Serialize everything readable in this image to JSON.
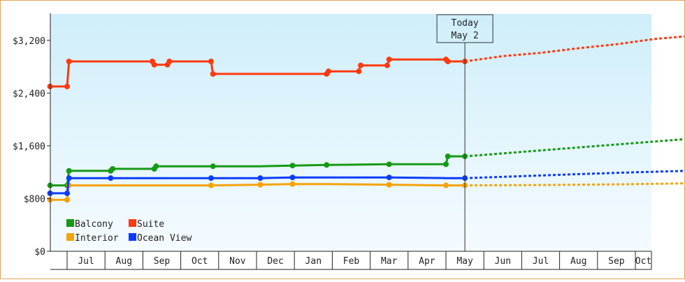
{
  "colors": {
    "balcony": "#169a16",
    "interior": "#f5a30a",
    "suite": "#ff3a10",
    "ocean_view": "#0a3cff",
    "bg_top": "#cfeefa",
    "bg_bottom": "#f5fbff",
    "frame": "#e3a25a"
  },
  "today_marker": {
    "line1": "Today",
    "line2": "May 2"
  },
  "chart_data": {
    "type": "line",
    "title": "",
    "xlabel": "",
    "ylabel": "",
    "ylim": [
      0,
      3600
    ],
    "yticks": [
      0,
      800,
      1600,
      2400,
      3200
    ],
    "ytick_labels": [
      "$0",
      "$800",
      "$1,600",
      "$2,400",
      "$3,200"
    ],
    "x_months": [
      "Jul",
      "Aug",
      "Sep",
      "Oct",
      "Nov",
      "Dec",
      "Jan",
      "Feb",
      "Mar",
      "Apr",
      "May",
      "Jun",
      "Jul",
      "Aug",
      "Sep",
      "Oct"
    ],
    "x_range": [
      0,
      16.3
    ],
    "today_x": 10.5,
    "grid": false,
    "legend_position": "bottom-left",
    "series": [
      {
        "name": "Balcony",
        "color": "#169a16",
        "points": [
          [
            -0.45,
            1000
          ],
          [
            0,
            1000
          ],
          [
            0.05,
            1220
          ],
          [
            1.15,
            1220
          ],
          [
            1.2,
            1250
          ],
          [
            2.3,
            1250
          ],
          [
            2.35,
            1290
          ],
          [
            3.85,
            1290
          ],
          [
            5.1,
            1290
          ],
          [
            5.95,
            1300
          ],
          [
            6.85,
            1310
          ],
          [
            6.9,
            1310
          ],
          [
            8.5,
            1320
          ],
          [
            10.0,
            1320
          ],
          [
            10.05,
            1440
          ],
          [
            10.5,
            1440
          ]
        ],
        "markers": [
          [
            -0.45,
            1000
          ],
          [
            0,
            1000
          ],
          [
            0.05,
            1220
          ],
          [
            1.15,
            1220
          ],
          [
            1.2,
            1250
          ],
          [
            2.3,
            1250
          ],
          [
            2.35,
            1290
          ],
          [
            3.85,
            1290
          ],
          [
            5.95,
            1300
          ],
          [
            6.85,
            1310
          ],
          [
            8.5,
            1320
          ],
          [
            10.0,
            1320
          ],
          [
            10.05,
            1440
          ],
          [
            10.5,
            1440
          ]
        ],
        "projection": [
          [
            10.5,
            1440
          ],
          [
            12.5,
            1530
          ],
          [
            14.5,
            1620
          ],
          [
            16.3,
            1700
          ]
        ]
      },
      {
        "name": "Suite",
        "color": "#ff3a10",
        "points": [
          [
            -0.45,
            2500
          ],
          [
            0,
            2500
          ],
          [
            0.05,
            2880
          ],
          [
            2.25,
            2880
          ],
          [
            2.3,
            2830
          ],
          [
            2.65,
            2830
          ],
          [
            2.7,
            2880
          ],
          [
            3.8,
            2880
          ],
          [
            3.85,
            2690
          ],
          [
            6.85,
            2690
          ],
          [
            6.9,
            2730
          ],
          [
            7.7,
            2730
          ],
          [
            7.75,
            2820
          ],
          [
            8.45,
            2820
          ],
          [
            8.5,
            2910
          ],
          [
            10.0,
            2910
          ],
          [
            10.05,
            2880
          ],
          [
            10.5,
            2880
          ]
        ],
        "markers": [
          [
            -0.45,
            2500
          ],
          [
            0,
            2500
          ],
          [
            0.05,
            2880
          ],
          [
            2.25,
            2880
          ],
          [
            2.3,
            2830
          ],
          [
            2.65,
            2830
          ],
          [
            2.7,
            2880
          ],
          [
            3.8,
            2880
          ],
          [
            3.85,
            2690
          ],
          [
            6.85,
            2690
          ],
          [
            6.9,
            2730
          ],
          [
            7.7,
            2730
          ],
          [
            7.75,
            2820
          ],
          [
            8.45,
            2820
          ],
          [
            8.5,
            2910
          ],
          [
            10.0,
            2910
          ],
          [
            10.05,
            2880
          ],
          [
            10.5,
            2880
          ]
        ],
        "projection": [
          [
            10.5,
            2880
          ],
          [
            11.5,
            2960
          ],
          [
            12.5,
            3010
          ],
          [
            13.5,
            3080
          ],
          [
            14.5,
            3140
          ],
          [
            15.5,
            3220
          ],
          [
            16.3,
            3260
          ]
        ]
      },
      {
        "name": "Interior",
        "color": "#f5a30a",
        "points": [
          [
            -0.45,
            780
          ],
          [
            0,
            780
          ],
          [
            0.05,
            1000
          ],
          [
            3.8,
            1000
          ],
          [
            5.1,
            1010
          ],
          [
            5.95,
            1020
          ],
          [
            6.9,
            1020
          ],
          [
            8.5,
            1010
          ],
          [
            10.0,
            1000
          ],
          [
            10.5,
            1000
          ]
        ],
        "markers": [
          [
            -0.45,
            780
          ],
          [
            0,
            780
          ],
          [
            0.05,
            1000
          ],
          [
            3.8,
            1000
          ],
          [
            5.1,
            1010
          ],
          [
            5.95,
            1020
          ],
          [
            8.5,
            1010
          ],
          [
            10.0,
            1000
          ],
          [
            10.5,
            1000
          ]
        ],
        "projection": [
          [
            10.5,
            1000
          ],
          [
            12.5,
            1005
          ],
          [
            14.5,
            1015
          ],
          [
            16.3,
            1030
          ]
        ]
      },
      {
        "name": "Ocean View",
        "color": "#0a3cff",
        "points": [
          [
            -0.45,
            880
          ],
          [
            0,
            880
          ],
          [
            0.05,
            1110
          ],
          [
            1.15,
            1110
          ],
          [
            3.8,
            1110
          ],
          [
            5.1,
            1110
          ],
          [
            5.95,
            1120
          ],
          [
            6.9,
            1120
          ],
          [
            8.5,
            1120
          ],
          [
            10.0,
            1110
          ],
          [
            10.5,
            1110
          ]
        ],
        "markers": [
          [
            -0.45,
            880
          ],
          [
            0,
            880
          ],
          [
            0.05,
            1110
          ],
          [
            1.15,
            1110
          ],
          [
            3.8,
            1110
          ],
          [
            5.1,
            1110
          ],
          [
            5.95,
            1120
          ],
          [
            8.5,
            1120
          ],
          [
            10.5,
            1110
          ]
        ],
        "projection": [
          [
            10.5,
            1110
          ],
          [
            12.5,
            1150
          ],
          [
            14.5,
            1190
          ],
          [
            16.3,
            1220
          ]
        ]
      }
    ]
  }
}
